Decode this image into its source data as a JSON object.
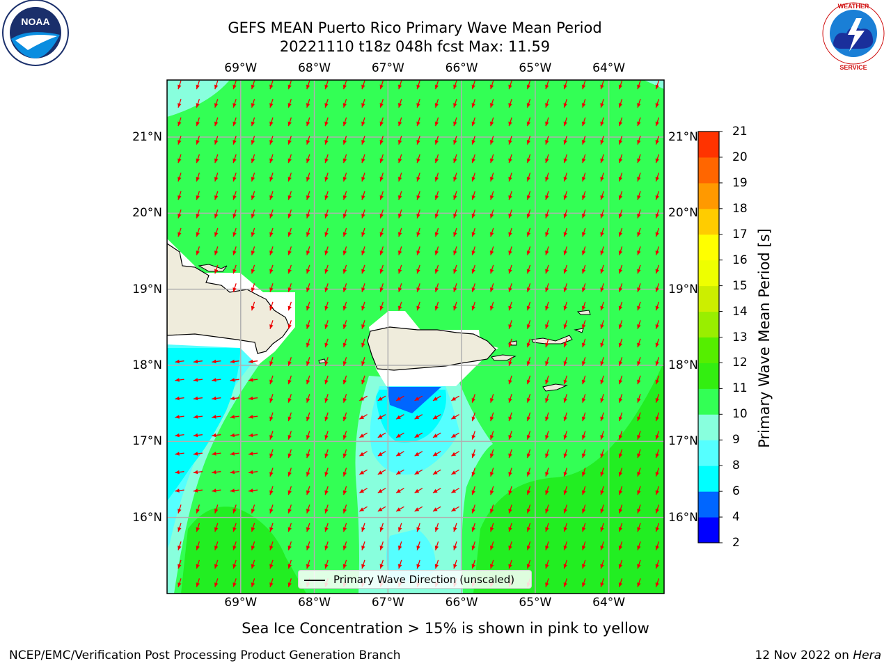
{
  "title": {
    "line1": "GEFS MEAN Puerto Rico Primary Wave Mean Period",
    "line2": "20221110 t18z 048h fcst   Max: 11.59"
  },
  "axes": {
    "lon_labels": [
      "69°W",
      "68°W",
      "67°W",
      "66°W",
      "65°W",
      "64°W"
    ],
    "lat_labels": [
      "21°N",
      "20°N",
      "19°N",
      "18°N",
      "17°N",
      "16°N"
    ],
    "lon_values": [
      -69,
      -68,
      -67,
      -66,
      -65,
      -64
    ],
    "lat_values": [
      21,
      20,
      19,
      18,
      17,
      16
    ],
    "lon_range": [
      -70,
      -63.25
    ],
    "lat_range": [
      15,
      21.75
    ],
    "grid": true
  },
  "colorbar": {
    "label": "Primary Wave Mean Period [s]",
    "ticks": [
      "2",
      "4",
      "6",
      "8",
      "9",
      "10",
      "11",
      "12",
      "13",
      "14",
      "15",
      "16",
      "17",
      "18",
      "19",
      "20",
      "21"
    ],
    "colors": [
      "#0000ff",
      "#0066ff",
      "#00ffff",
      "#55ffff",
      "#88ffdd",
      "#33ff55",
      "#33ee11",
      "#55ee00",
      "#99ee00",
      "#ccee00",
      "#eeff00",
      "#ffff00",
      "#ffcc00",
      "#ff9900",
      "#ff6600",
      "#ff3300",
      "#ff0000"
    ]
  },
  "legend": {
    "label": "Primary Wave Direction (unscaled)"
  },
  "colors": {
    "arrow": "#ee0000",
    "land": "#efecdc",
    "ocean_main": "#33ff55",
    "high_period": "#22ee22"
  },
  "footer": {
    "sea_ice_note": "Sea Ice Concentration > 15% is shown in pink to yellow",
    "credit": "NCEP/EMC/Verification Post Processing Product Generation Branch",
    "date_prefix": "12 Nov 2022 on",
    "machine": "Hera"
  },
  "logos": {
    "left": "NOAA",
    "right": "NATIONAL WEATHER SERVICE"
  }
}
